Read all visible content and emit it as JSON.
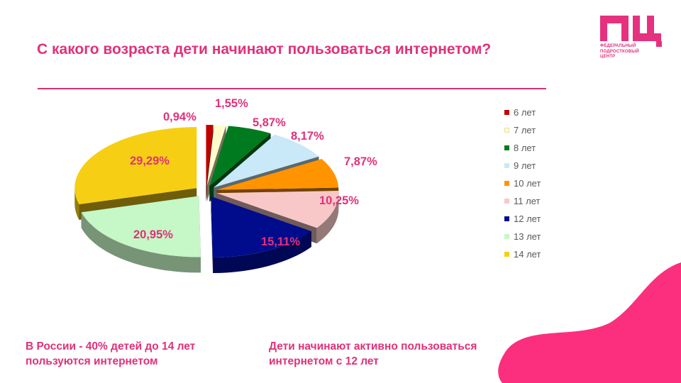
{
  "slide": {
    "title": "С какого возраста дети начинают пользоваться интернетом?",
    "logo_lines": [
      "ФЕДЕРАЛЬНЫЙ",
      "ПОДРОСТКОВЫЙ",
      "ЦЕНТР"
    ],
    "footnotes": [
      "В России - 40% детей до 14 лет пользуются интернетом",
      "Дети начинают активно пользоваться интернетом с 12 лет"
    ]
  },
  "colors": {
    "accent": "#e0317a",
    "rule": "#d4326f"
  },
  "chart_data": {
    "type": "pie",
    "style": "3d-exploded",
    "legend_position": "right",
    "slices": [
      {
        "name": "6 лет",
        "value": 0.94,
        "label": "0,94%",
        "color": "#c00000"
      },
      {
        "name": "7 лет",
        "value": 1.55,
        "label": "1,55%",
        "color": "#fffccc"
      },
      {
        "name": "8 лет",
        "value": 5.87,
        "label": "5,87%",
        "color": "#007a1e"
      },
      {
        "name": "9 лет",
        "value": 8.17,
        "label": "8,17%",
        "color": "#c9e8f8"
      },
      {
        "name": "10 лет",
        "value": 7.87,
        "label": "7,87%",
        "color": "#ff9400"
      },
      {
        "name": "11 лет",
        "value": 10.25,
        "label": "10,25%",
        "color": "#f8c8c8"
      },
      {
        "name": "12 лет",
        "value": 15.11,
        "label": "15,11%",
        "color": "#000c8c"
      },
      {
        "name": "13 лет",
        "value": 20.95,
        "label": "20,95%",
        "color": "#c6f7c6"
      },
      {
        "name": "14 лет",
        "value": 29.29,
        "label": "29,29%",
        "color": "#f6cf14"
      }
    ]
  }
}
